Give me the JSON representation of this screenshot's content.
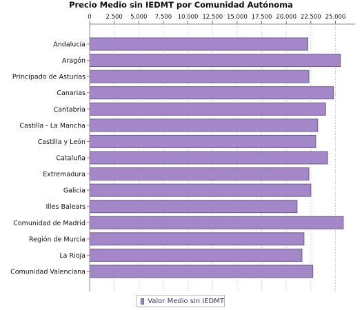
{
  "chart_data": {
    "type": "bar",
    "orientation": "horizontal",
    "title": "Precio Medio sin IEDMT por Comunidad Autónoma",
    "x_ticks": [
      "0",
      "2.500",
      "5.000",
      "7.500",
      "10.000",
      "12.500",
      "15.000",
      "17.500",
      "20.000",
      "22.500",
      "25.000"
    ],
    "xlim": [
      0,
      27000
    ],
    "x_axis_position": "top",
    "grid": "vertical dashed",
    "legend_position": "bottom",
    "categories": [
      "Andalucía",
      "Aragón",
      "Principado de Asturias",
      "Canarias",
      "Cantabria",
      "Castilla - La Mancha",
      "Castilla y León",
      "Cataluña",
      "Extremadura",
      "Galicia",
      "Illes Balears",
      "Comunidad de Madrid",
      "Región de Murcia",
      "La Rioja",
      "Comunidad Valenciana"
    ],
    "series": [
      {
        "name": "Valor Medio sin IEDMT",
        "color": "#a487c8",
        "values": [
          22200,
          25500,
          22300,
          24800,
          24000,
          23200,
          23000,
          24200,
          22300,
          22500,
          21100,
          25800,
          21800,
          21600,
          22700
        ]
      }
    ]
  }
}
